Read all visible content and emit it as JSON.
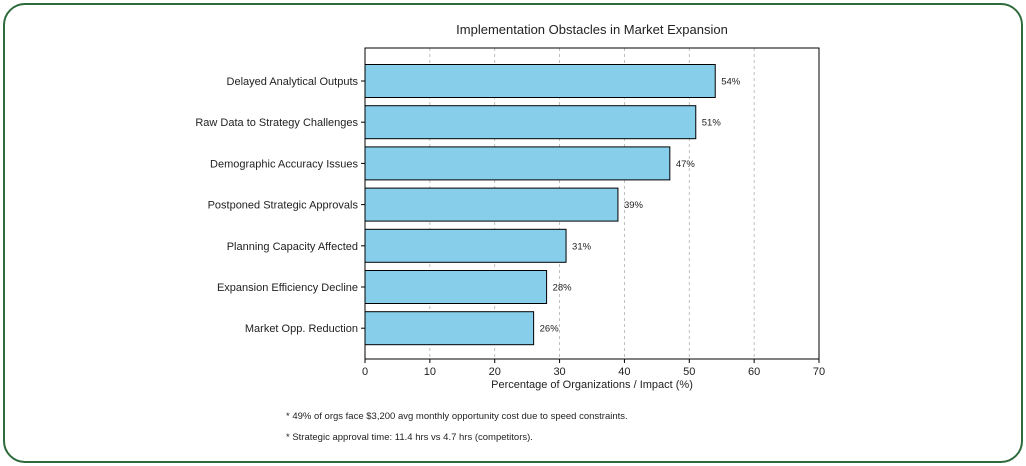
{
  "chart_data": {
    "type": "bar",
    "orientation": "horizontal",
    "title": "Implementation Obstacles in Market Expansion",
    "xlabel": "Percentage of Organizations / Impact (%)",
    "ylabel": "",
    "xlim": [
      0,
      70
    ],
    "xticks": [
      0,
      10,
      20,
      30,
      40,
      50,
      60,
      70
    ],
    "grid": "vertical-dashed",
    "categories": [
      "Delayed Analytical Outputs",
      "Raw Data to Strategy Challenges",
      "Demographic Accuracy Issues",
      "Postponed Strategic Approvals",
      "Planning Capacity Affected",
      "Expansion Efficiency Decline",
      "Market Opp. Reduction"
    ],
    "values": [
      54,
      51,
      47,
      39,
      31,
      28,
      26
    ],
    "value_labels": [
      "54%",
      "51%",
      "47%",
      "39%",
      "31%",
      "28%",
      "26%"
    ],
    "colors": {
      "bar": "#87ceeb",
      "bar_edge": "#000000",
      "grid": "#b0b0b0",
      "frame": "#2e6b3c"
    }
  },
  "footnotes": [
    "* 49% of orgs face $3,200 avg monthly opportunity cost due to speed constraints.",
    "* Strategic approval time: 11.4 hrs vs 4.7 hrs (competitors)."
  ]
}
